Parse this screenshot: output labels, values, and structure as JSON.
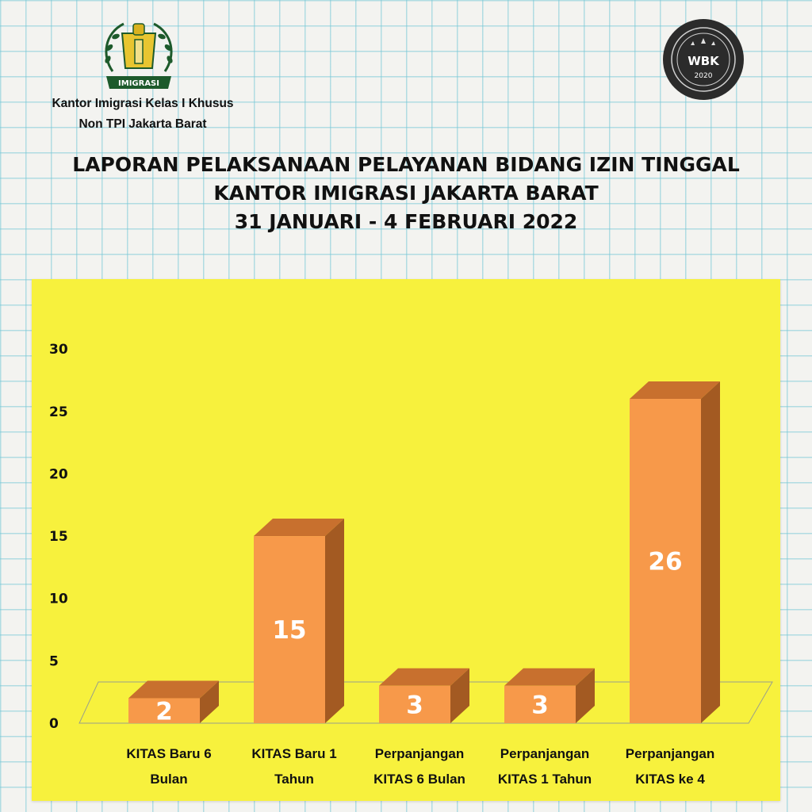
{
  "header": {
    "logo_left": {
      "name": "imigrasi-logo",
      "text": "IMIGRASI"
    },
    "office_line1": "Kantor Imigrasi Kelas I Khusus",
    "office_line2": "Non TPI Jakarta Barat",
    "logo_right": {
      "name": "wbk-badge",
      "text": "WBK",
      "year": "2020"
    }
  },
  "title": {
    "line1": "LAPORAN PELAKSANAAN PELAYANAN BIDANG IZIN TINGGAL",
    "line2": "KANTOR IMIGRASI JAKARTA BARAT",
    "line3": "31 JANUARI - 4 FEBRUARI 2022"
  },
  "colors": {
    "panel": "#f7f13d",
    "bar_front": "#f7994a",
    "bar_top": "#c8702e",
    "bar_side": "#a35a22"
  },
  "chart_data": {
    "type": "bar",
    "categories": [
      [
        "KITAS Baru 6",
        "Bulan"
      ],
      [
        "KITAS Baru 1",
        "Tahun"
      ],
      [
        "Perpanjangan",
        "KITAS 6 Bulan"
      ],
      [
        "Perpanjangan",
        "KITAS 1 Tahun"
      ],
      [
        "Perpanjangan",
        "KITAS ke 4"
      ]
    ],
    "values": [
      2,
      15,
      3,
      3,
      26
    ],
    "data_labels": [
      "2",
      "15",
      "3",
      "3",
      "26"
    ],
    "yticks": [
      "0",
      "5",
      "10",
      "15",
      "20",
      "25",
      "30"
    ],
    "ylim": [
      0,
      30
    ],
    "grid": false,
    "style": "3d-bar"
  }
}
